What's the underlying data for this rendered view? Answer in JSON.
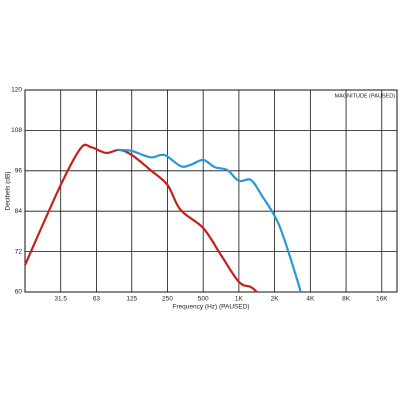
{
  "chart_data": {
    "type": "line",
    "title": "MAGNITUDE (PAUSED)",
    "xlabel": "Frequency (Hz) (PAUSED)",
    "ylabel": "Decibels (dB)",
    "xscale": "log",
    "grid": true,
    "xlim": [
      15.75,
      21500
    ],
    "ylim": [
      60,
      120
    ],
    "xticks": [
      31.5,
      63,
      125,
      250,
      500,
      {
        "value": 1000,
        "label": "1K"
      },
      {
        "value": 2000,
        "label": "2K"
      },
      {
        "value": 4000,
        "label": "4K"
      },
      {
        "value": 8000,
        "label": "8K"
      },
      {
        "value": 16000,
        "label": "16K"
      }
    ],
    "yticks": [
      60,
      72,
      84,
      96,
      108,
      120
    ],
    "series": [
      {
        "color": "#c4201c",
        "x": [
          15.75,
          31.5,
          46.6,
          57,
          76,
          98,
          125,
          180,
          250,
          322,
          500,
          706,
          1000,
          1260,
          1413
        ],
        "values": [
          68,
          91.8,
          102.8,
          103,
          101.3,
          102.2,
          100.7,
          96.2,
          91.8,
          84.4,
          79,
          71,
          63,
          61.5,
          60
        ]
      },
      {
        "color": "#2b98d4",
        "x": [
          95,
          125,
          180,
          235,
          322,
          388,
          500,
          625,
          800,
          1000,
          1260,
          1550,
          2180,
          3100,
          3300
        ],
        "values": [
          102.2,
          101.9,
          100,
          100.7,
          97.4,
          97.7,
          99.2,
          97.1,
          96.2,
          93,
          93.3,
          88.8,
          79.9,
          63.6,
          60
        ]
      }
    ]
  }
}
